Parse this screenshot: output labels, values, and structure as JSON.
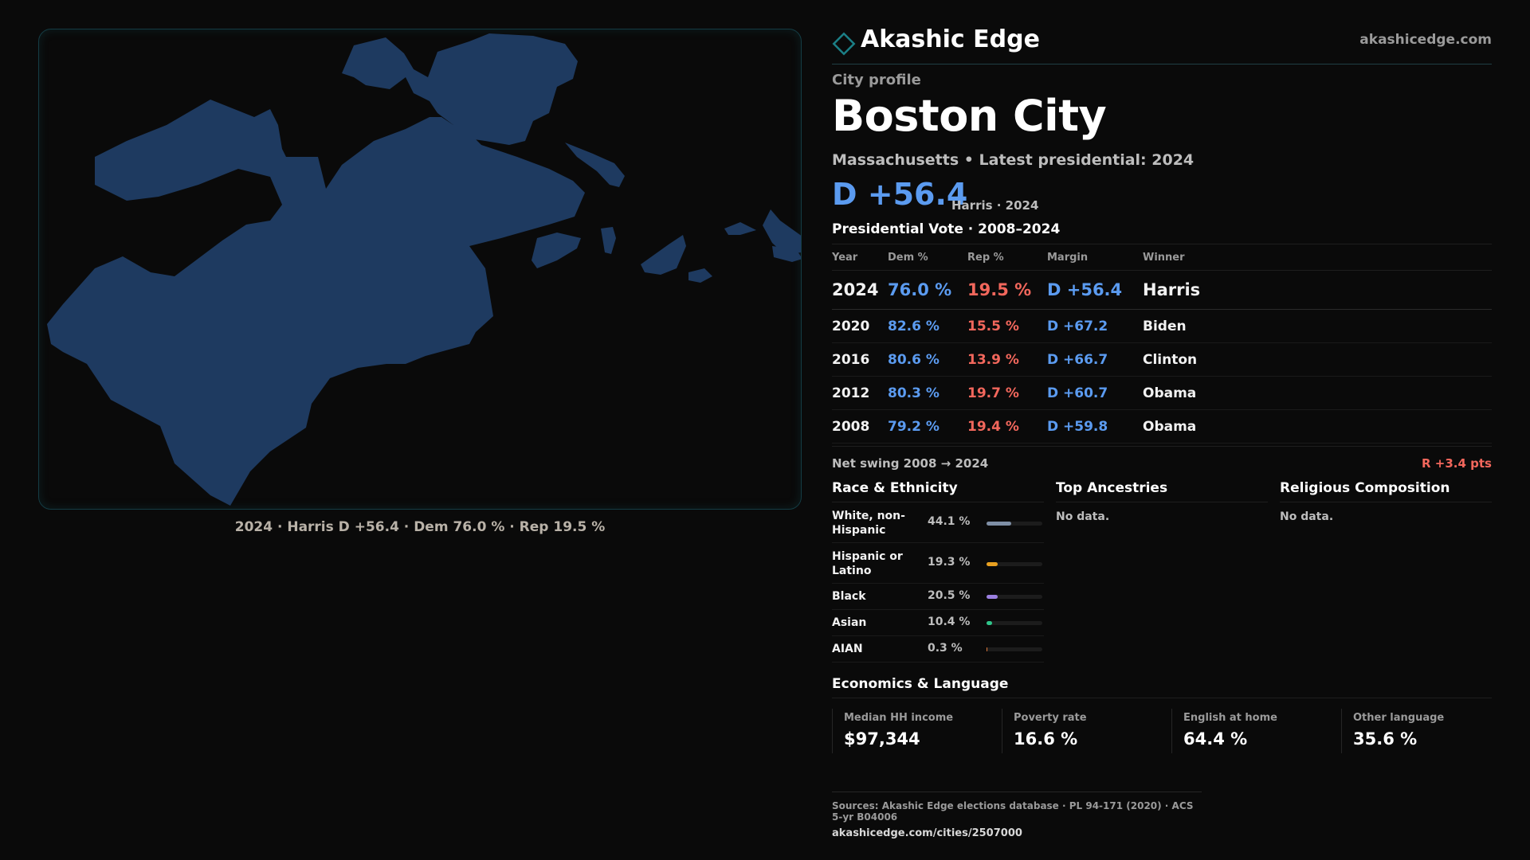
{
  "brand": {
    "name": "Akashic Edge",
    "url": "akashicedge.com",
    "accent": "#1b7f86"
  },
  "profile": {
    "kicker": "City profile",
    "title": "Boston City",
    "subtitle": "Massachusetts • Latest presidential: 2024",
    "margin": "D +56.4",
    "margin_note": "Harris · 2024"
  },
  "map": {
    "caption": "2024 · Harris D +56.4 · Dem 76.0 % · Rep 19.5 %",
    "fill_color": "#1e3a60"
  },
  "vote_table": {
    "title": "Presidential Vote · 2008–2024",
    "headers": [
      "Year",
      "Dem %",
      "Rep %",
      "Margin",
      "Winner"
    ],
    "rows": [
      {
        "year": "2024",
        "dem": "76.0 %",
        "rep": "19.5 %",
        "margin": "D +56.4",
        "winner": "Harris"
      },
      {
        "year": "2020",
        "dem": "82.6 %",
        "rep": "15.5 %",
        "margin": "D +67.2",
        "winner": "Biden"
      },
      {
        "year": "2016",
        "dem": "80.6 %",
        "rep": "13.9 %",
        "margin": "D +66.7",
        "winner": "Clinton"
      },
      {
        "year": "2012",
        "dem": "80.3 %",
        "rep": "19.7 %",
        "margin": "D +60.7",
        "winner": "Obama"
      },
      {
        "year": "2008",
        "dem": "79.2 %",
        "rep": "19.4 %",
        "margin": "D +59.8",
        "winner": "Obama"
      }
    ],
    "dem_color": "#5b9bf0",
    "rep_color": "#f2675c"
  },
  "swing": {
    "label": "Net swing 2008 → 2024",
    "value": "R +3.4 pts"
  },
  "race": {
    "title": "Race & Ethnicity",
    "rows": [
      {
        "label": "White, non-Hispanic",
        "pct": "44.1 %",
        "share": 0.441,
        "color": "#7f8fa6"
      },
      {
        "label": "Hispanic or Latino",
        "pct": "19.3 %",
        "share": 0.193,
        "color": "#e8a020"
      },
      {
        "label": "Black",
        "pct": "20.5 %",
        "share": 0.205,
        "color": "#9b7fe0"
      },
      {
        "label": "Asian",
        "pct": "10.4 %",
        "share": 0.104,
        "color": "#2fc58a"
      },
      {
        "label": "AIAN",
        "pct": "0.3 %",
        "share": 0.003,
        "color": "#e07a3a"
      }
    ]
  },
  "ancestries": {
    "title": "Top Ancestries",
    "text": "No data."
  },
  "religion": {
    "title": "Religious Composition",
    "text": "No data."
  },
  "economics": {
    "title": "Economics & Language",
    "cells": [
      {
        "label": "Median HH income",
        "value": "$97,344"
      },
      {
        "label": "Poverty rate",
        "value": "16.6 %"
      },
      {
        "label": "English at home",
        "value": "64.4 %"
      },
      {
        "label": "Other language",
        "value": "35.6 %"
      }
    ]
  },
  "sources": {
    "line": "Sources: Akashic Edge elections database · PL 94-171 (2020) · ACS 5-yr B04006",
    "url": "akashicedge.com/cities/2507000"
  }
}
